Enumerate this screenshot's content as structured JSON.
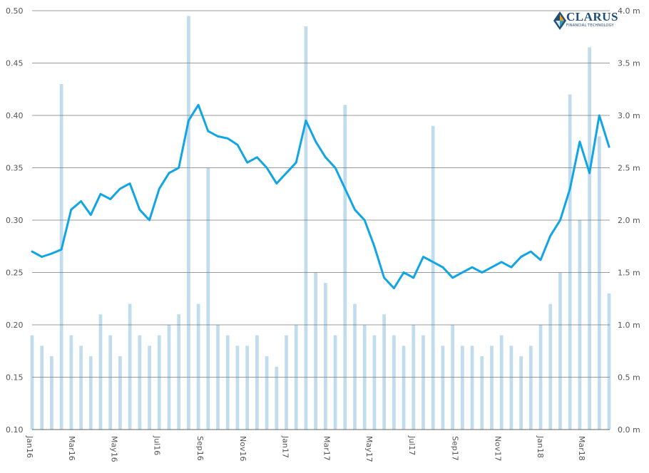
{
  "brand": {
    "name": "CLARUS",
    "tagline": "FINANCIAL TECHNOLOGY",
    "colors": {
      "navy": "#1f4e79",
      "orange": "#f39c12",
      "teal": "#2a9fd6"
    }
  },
  "chart_data": {
    "type": "line",
    "title": "",
    "xlabel": "",
    "ylabel_left": "",
    "ylabel_right": "",
    "x_tick_labels": [
      "Jan16",
      "Mar16",
      "May16",
      "Jul16",
      "Sep16",
      "Nov16",
      "Jan17",
      "Mar17",
      "May17",
      "Jul17",
      "Sep17",
      "Nov17",
      "Jan18",
      "Mar18"
    ],
    "x_range": [
      "2016-01-04",
      "2018-04-10"
    ],
    "y_left": {
      "ylim": [
        0.1,
        0.5
      ],
      "ticks": [
        "0.10",
        "0.15",
        "0.20",
        "0.25",
        "0.30",
        "0.35",
        "0.40",
        "0.45",
        "0.50"
      ]
    },
    "y_right": {
      "ylim": [
        0,
        4.0
      ],
      "unit": "m",
      "ticks": [
        "0.0 m",
        "0.5 m",
        "1.0 m",
        "1.5 m",
        "2.0 m",
        "2.5 m",
        "3.0 m",
        "3.5 m",
        "4.0 m"
      ]
    },
    "grid": "horizontal",
    "legend": "none",
    "series": [
      {
        "kind": "line",
        "axis": "left",
        "color": "#12a5e6",
        "points": [
          [
            "2016-01-04",
            0.27
          ],
          [
            "2016-01-18",
            0.265
          ],
          [
            "2016-02-01",
            0.268
          ],
          [
            "2016-02-15",
            0.272
          ],
          [
            "2016-02-29",
            0.31
          ],
          [
            "2016-03-14",
            0.318
          ],
          [
            "2016-03-28",
            0.305
          ],
          [
            "2016-04-11",
            0.325
          ],
          [
            "2016-04-25",
            0.32
          ],
          [
            "2016-05-09",
            0.33
          ],
          [
            "2016-05-23",
            0.335
          ],
          [
            "2016-06-06",
            0.31
          ],
          [
            "2016-06-20",
            0.3
          ],
          [
            "2016-07-04",
            0.33
          ],
          [
            "2016-07-18",
            0.345
          ],
          [
            "2016-08-01",
            0.35
          ],
          [
            "2016-08-15",
            0.395
          ],
          [
            "2016-08-29",
            0.41
          ],
          [
            "2016-09-12",
            0.385
          ],
          [
            "2016-09-26",
            0.38
          ],
          [
            "2016-10-10",
            0.378
          ],
          [
            "2016-10-24",
            0.372
          ],
          [
            "2016-11-07",
            0.355
          ],
          [
            "2016-11-21",
            0.36
          ],
          [
            "2016-12-05",
            0.35
          ],
          [
            "2016-12-19",
            0.335
          ],
          [
            "2017-01-02",
            0.345
          ],
          [
            "2017-01-16",
            0.355
          ],
          [
            "2017-01-30",
            0.395
          ],
          [
            "2017-02-13",
            0.375
          ],
          [
            "2017-02-27",
            0.36
          ],
          [
            "2017-03-13",
            0.35
          ],
          [
            "2017-03-27",
            0.33
          ],
          [
            "2017-04-10",
            0.31
          ],
          [
            "2017-04-24",
            0.3
          ],
          [
            "2017-05-08",
            0.275
          ],
          [
            "2017-05-22",
            0.245
          ],
          [
            "2017-06-05",
            0.235
          ],
          [
            "2017-06-19",
            0.25
          ],
          [
            "2017-07-03",
            0.245
          ],
          [
            "2017-07-17",
            0.265
          ],
          [
            "2017-07-31",
            0.26
          ],
          [
            "2017-08-14",
            0.255
          ],
          [
            "2017-08-28",
            0.245
          ],
          [
            "2017-09-11",
            0.25
          ],
          [
            "2017-09-25",
            0.255
          ],
          [
            "2017-10-09",
            0.25
          ],
          [
            "2017-10-23",
            0.255
          ],
          [
            "2017-11-06",
            0.26
          ],
          [
            "2017-11-20",
            0.255
          ],
          [
            "2017-12-04",
            0.265
          ],
          [
            "2017-12-18",
            0.27
          ],
          [
            "2018-01-01",
            0.262
          ],
          [
            "2018-01-15",
            0.285
          ],
          [
            "2018-01-29",
            0.3
          ],
          [
            "2018-02-12",
            0.33
          ],
          [
            "2018-02-26",
            0.375
          ],
          [
            "2018-03-12",
            0.345
          ],
          [
            "2018-03-26",
            0.4
          ],
          [
            "2018-04-09",
            0.37
          ]
        ]
      },
      {
        "kind": "bar",
        "axis": "right",
        "color": "#b5d6ea",
        "points": [
          [
            "2016-01-04",
            0.9
          ],
          [
            "2016-01-18",
            0.8
          ],
          [
            "2016-02-01",
            0.7
          ],
          [
            "2016-02-15",
            3.3
          ],
          [
            "2016-02-29",
            0.9
          ],
          [
            "2016-03-14",
            0.8
          ],
          [
            "2016-03-28",
            0.7
          ],
          [
            "2016-04-11",
            1.1
          ],
          [
            "2016-04-25",
            0.9
          ],
          [
            "2016-05-09",
            0.7
          ],
          [
            "2016-05-23",
            1.2
          ],
          [
            "2016-06-06",
            0.9
          ],
          [
            "2016-06-20",
            0.8
          ],
          [
            "2016-07-04",
            0.9
          ],
          [
            "2016-07-18",
            1.0
          ],
          [
            "2016-08-01",
            1.1
          ],
          [
            "2016-08-15",
            3.95
          ],
          [
            "2016-08-29",
            1.2
          ],
          [
            "2016-09-12",
            2.5
          ],
          [
            "2016-09-26",
            1.0
          ],
          [
            "2016-10-10",
            0.9
          ],
          [
            "2016-10-24",
            0.8
          ],
          [
            "2016-11-07",
            0.8
          ],
          [
            "2016-11-21",
            0.9
          ],
          [
            "2016-12-05",
            0.7
          ],
          [
            "2016-12-19",
            0.6
          ],
          [
            "2017-01-02",
            0.9
          ],
          [
            "2017-01-16",
            1.0
          ],
          [
            "2017-01-30",
            3.85
          ],
          [
            "2017-02-13",
            1.5
          ],
          [
            "2017-02-27",
            1.4
          ],
          [
            "2017-03-13",
            0.9
          ],
          [
            "2017-03-27",
            3.1
          ],
          [
            "2017-04-10",
            1.2
          ],
          [
            "2017-04-24",
            1.0
          ],
          [
            "2017-05-08",
            0.9
          ],
          [
            "2017-05-22",
            1.1
          ],
          [
            "2017-06-05",
            0.9
          ],
          [
            "2017-06-19",
            0.8
          ],
          [
            "2017-07-03",
            1.0
          ],
          [
            "2017-07-17",
            0.9
          ],
          [
            "2017-07-31",
            2.9
          ],
          [
            "2017-08-14",
            0.8
          ],
          [
            "2017-08-28",
            1.0
          ],
          [
            "2017-09-11",
            0.8
          ],
          [
            "2017-09-25",
            0.8
          ],
          [
            "2017-10-09",
            0.7
          ],
          [
            "2017-10-23",
            0.8
          ],
          [
            "2017-11-06",
            0.9
          ],
          [
            "2017-11-20",
            0.8
          ],
          [
            "2017-12-04",
            0.7
          ],
          [
            "2017-12-18",
            0.8
          ],
          [
            "2018-01-01",
            1.0
          ],
          [
            "2018-01-15",
            1.2
          ],
          [
            "2018-01-29",
            1.5
          ],
          [
            "2018-02-12",
            3.2
          ],
          [
            "2018-02-26",
            2.0
          ],
          [
            "2018-03-12",
            3.65
          ],
          [
            "2018-03-26",
            2.8
          ],
          [
            "2018-04-09",
            1.3
          ]
        ]
      }
    ]
  }
}
